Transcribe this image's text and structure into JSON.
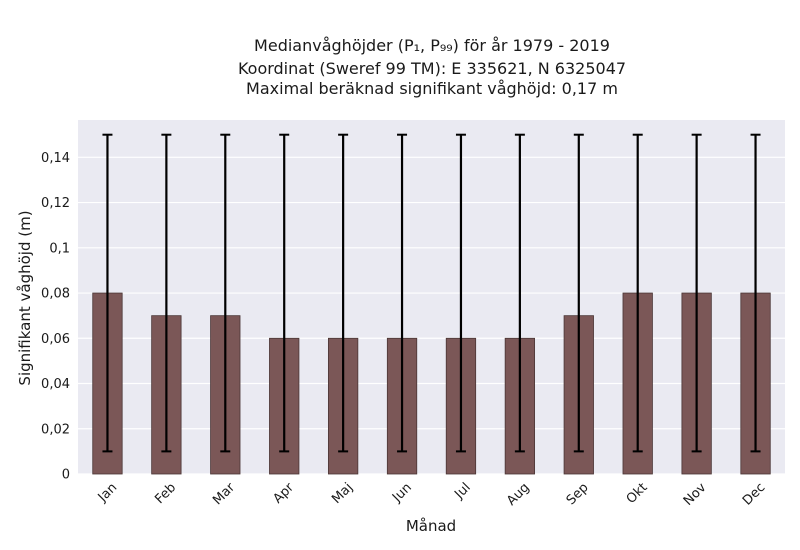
{
  "chart_data": {
    "type": "bar",
    "title_lines": [
      "Medianvåghöjder (P₁, P₉₉) för år 1979 - 2019",
      "Koordinat (Sweref 99 TM): E 335621, N 6325047",
      "Maximal beräknad signifikant våghöjd: 0,17 m"
    ],
    "xlabel": "Månad",
    "ylabel": "Signifikant våghöjd (m)",
    "categories": [
      "Jan",
      "Feb",
      "Mar",
      "Apr",
      "Maj",
      "Jun",
      "Jul",
      "Aug",
      "Sep",
      "Okt",
      "Nov",
      "Dec"
    ],
    "values": [
      0.08,
      0.07,
      0.07,
      0.06,
      0.06,
      0.06,
      0.06,
      0.06,
      0.07,
      0.08,
      0.08,
      0.08
    ],
    "error_low": [
      0.01,
      0.01,
      0.01,
      0.01,
      0.01,
      0.01,
      0.01,
      0.01,
      0.01,
      0.01,
      0.01,
      0.01
    ],
    "error_high": [
      0.15,
      0.15,
      0.15,
      0.15,
      0.15,
      0.15,
      0.15,
      0.15,
      0.15,
      0.15,
      0.15,
      0.15
    ],
    "ylim": [
      0,
      0.1565
    ],
    "yticks": [
      0,
      0.02,
      0.04,
      0.06,
      0.08,
      0.1,
      0.12,
      0.14
    ],
    "ytick_labels": [
      "0",
      "0,02",
      "0,04",
      "0,06",
      "0,08",
      "0,1",
      "0,12",
      "0,14"
    ],
    "grid": true,
    "legend": "none",
    "colors": {
      "bar": "#7b5757",
      "bar_edge": "#4a3535",
      "error_bar": "#000000",
      "plot_background": "#eaeaf2",
      "grid": "#ffffff"
    }
  }
}
